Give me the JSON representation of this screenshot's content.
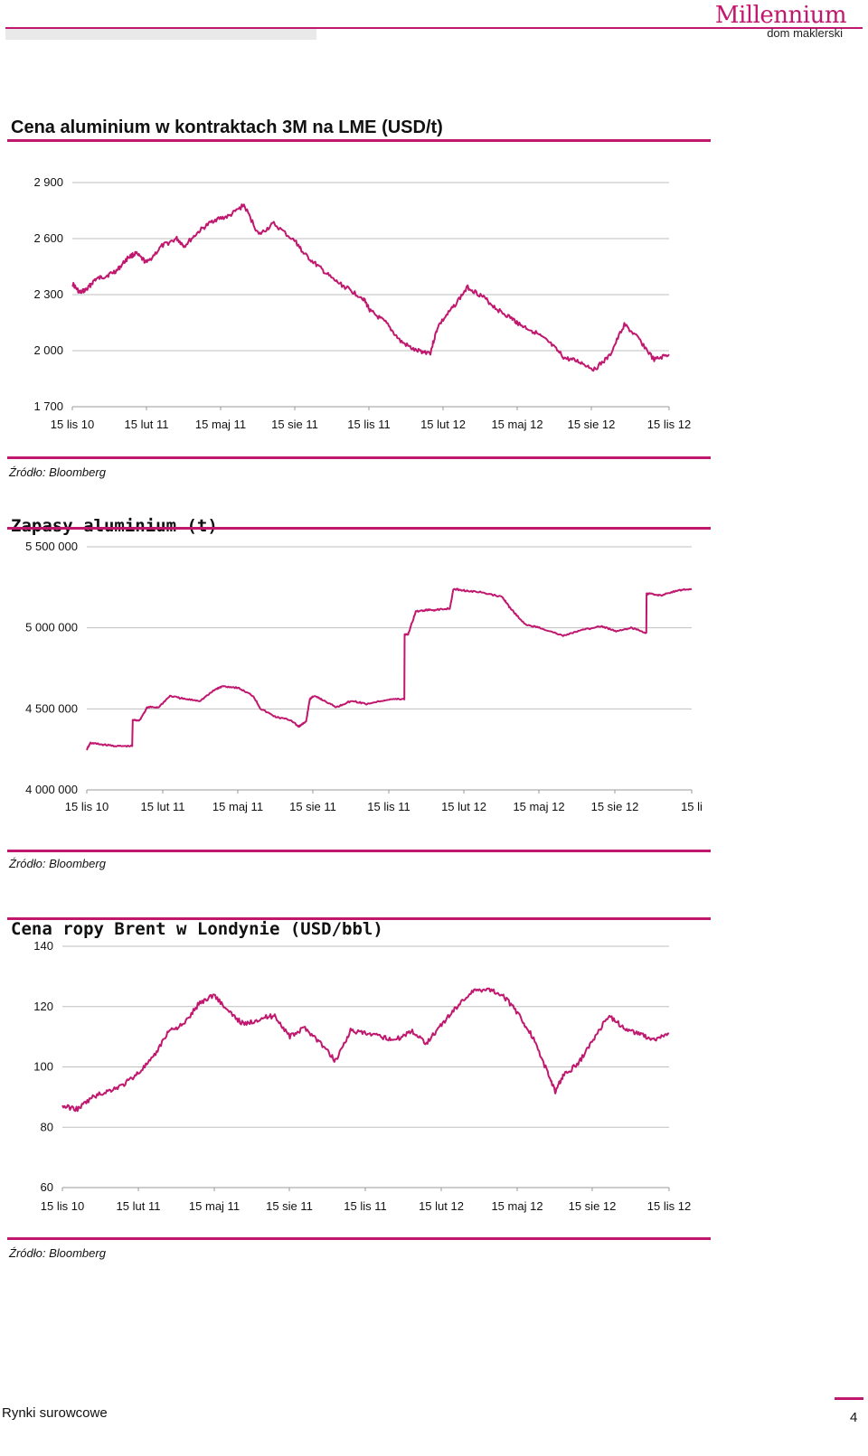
{
  "header": {
    "logo_main": "Millennium",
    "logo_sub": "dom maklerski"
  },
  "footer": {
    "section_label": "Rynki surowcowe",
    "page_number": "4"
  },
  "colors": {
    "accent": "#c0176f",
    "grid": "#bfbfbf"
  },
  "charts": [
    {
      "title": "Cena aluminium w kontraktach 3M na LME (USD/t)",
      "source": "Źródło: Bloomberg"
    },
    {
      "title": "Zapasy aluminium (t)",
      "source": "Źródło: Bloomberg"
    },
    {
      "title": "Cena ropy Brent w Londynie (USD/bbl)",
      "source": "Źródło: Bloomberg"
    }
  ],
  "chart_data": [
    {
      "type": "line",
      "title": "Cena aluminium w kontraktach 3M na LME (USD/t)",
      "y_ticks": [
        "2 900",
        "2 600",
        "2 300",
        "2 000",
        "1 700"
      ],
      "ylim": [
        1700,
        2900
      ],
      "x_ticks": [
        "15 lis 10",
        "15 lut 11",
        "15 maj 11",
        "15 sie 11",
        "15 lis 11",
        "15 lut 12",
        "15 maj 12",
        "15 sie 12",
        "15 lis 12"
      ],
      "grid": true,
      "series": [
        {
          "x": [
            0,
            0.1,
            0.2,
            0.3,
            0.45,
            0.6,
            0.75,
            0.85,
            1.0,
            1.2,
            1.4,
            1.5,
            1.7,
            1.9,
            2.1,
            2.3,
            2.5,
            2.7,
            3.0,
            3.1,
            3.3,
            3.5,
            3.7,
            3.9,
            4.0,
            4.2,
            4.4,
            4.6,
            4.8,
            4.9,
            5.1,
            5.3,
            5.5,
            5.7,
            5.9,
            6.0,
            6.2,
            6.4,
            6.6,
            6.8,
            7.0,
            7.2,
            7.4,
            7.6,
            7.8,
            8.0
          ],
          "values": [
            2360,
            2310,
            2330,
            2380,
            2400,
            2430,
            2500,
            2520,
            2470,
            2560,
            2600,
            2560,
            2640,
            2700,
            2720,
            2780,
            2620,
            2680,
            2580,
            2520,
            2450,
            2380,
            2330,
            2280,
            2210,
            2150,
            2050,
            2000,
            1990,
            2130,
            2230,
            2340,
            2290,
            2220,
            2170,
            2140,
            2100,
            2040,
            1960,
            1940,
            1900,
            1970,
            2140,
            2060,
            1950,
            1980
          ]
        }
      ]
    },
    {
      "type": "line",
      "title": "Zapasy aluminium (t)",
      "y_ticks": [
        "5 500 000",
        "5 000 000",
        "4 500 000",
        "4 000 000"
      ],
      "ylim": [
        4000000,
        5500000
      ],
      "x_ticks": [
        "15 lis 10",
        "15 lut 11",
        "15 maj 11",
        "15 sie 11",
        "15 lis 11",
        "15 lut 12",
        "15 maj 12",
        "15 sie 12",
        "15 li"
      ],
      "grid": true,
      "series": [
        {
          "x": [
            0,
            0.05,
            0.2,
            0.4,
            0.6,
            0.7,
            0.8,
            0.95,
            1.1,
            1.3,
            1.5,
            1.7,
            1.8,
            2.0,
            2.2,
            2.3,
            2.5,
            2.7,
            2.8,
            2.9,
            2.95,
            3.0,
            3.1,
            3.3,
            3.5,
            3.7,
            4.0,
            4.2,
            4.25,
            4.35,
            4.5,
            4.6,
            4.8,
            4.85,
            5.0,
            5.2,
            5.5,
            5.6,
            5.8,
            6.0,
            6.3,
            6.5,
            6.8,
            7.0,
            7.2,
            7.4,
            7.45,
            7.6,
            7.8,
            8.0
          ],
          "values": [
            4250000,
            4290000,
            4280000,
            4270000,
            4270000,
            4430000,
            4510000,
            4510000,
            4580000,
            4560000,
            4550000,
            4620000,
            4640000,
            4630000,
            4580000,
            4500000,
            4450000,
            4430000,
            4390000,
            4420000,
            4560000,
            4580000,
            4560000,
            4510000,
            4550000,
            4530000,
            4560000,
            4560000,
            4960000,
            5100000,
            5110000,
            5110000,
            5120000,
            5240000,
            5230000,
            5220000,
            5190000,
            5120000,
            5020000,
            5000000,
            4950000,
            4980000,
            5010000,
            4980000,
            5000000,
            4970000,
            5210000,
            5200000,
            5230000,
            5240000
          ]
        }
      ]
    },
    {
      "type": "line",
      "title": "Cena ropy Brent w Londynie (USD/bbl)",
      "y_ticks": [
        "140",
        "120",
        "100",
        "80",
        "60"
      ],
      "ylim": [
        60,
        140
      ],
      "x_ticks": [
        "15 lis 10",
        "15 lut 11",
        "15 maj 11",
        "15 sie 11",
        "15 lis 11",
        "15 lut 12",
        "15 maj 12",
        "15 sie 12",
        "15 lis 12"
      ],
      "grid": true,
      "series": [
        {
          "x": [
            0,
            0.2,
            0.4,
            0.6,
            0.8,
            1.0,
            1.2,
            1.4,
            1.6,
            1.8,
            2.0,
            2.2,
            2.4,
            2.6,
            2.8,
            3.0,
            3.2,
            3.4,
            3.6,
            3.8,
            4.0,
            4.2,
            4.4,
            4.6,
            4.8,
            5.0,
            5.2,
            5.4,
            5.6,
            5.8,
            6.0,
            6.2,
            6.4,
            6.5,
            6.6,
            6.8,
            7.0,
            7.2,
            7.4,
            7.6,
            7.8,
            8.0
          ],
          "values": [
            87,
            86,
            90,
            92,
            94,
            98,
            103,
            112,
            114,
            121,
            124,
            118,
            114,
            116,
            117,
            110,
            113,
            108,
            102,
            112,
            111,
            110,
            109,
            112,
            108,
            114,
            120,
            125,
            126,
            124,
            118,
            110,
            98,
            92,
            97,
            101,
            109,
            117,
            113,
            111,
            109,
            111
          ]
        }
      ]
    }
  ]
}
